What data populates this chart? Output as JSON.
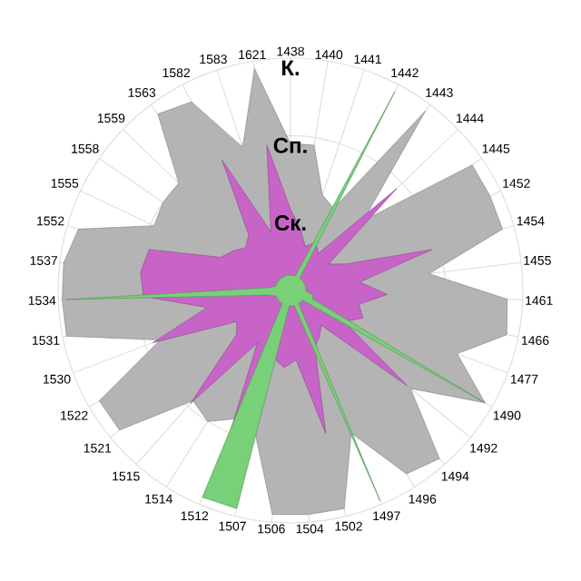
{
  "chart_data": {
    "type": "radar",
    "categories": [
      "1438",
      "1440",
      "1441",
      "1442",
      "1443",
      "1444",
      "1445",
      "1452",
      "1454",
      "1455",
      "1461",
      "1466",
      "1477",
      "1490",
      "1492",
      "1494",
      "1496",
      "1497",
      "1502",
      "1504",
      "1506",
      "1507",
      "1512",
      "1514",
      "1515",
      "1521",
      "1522",
      "1530",
      "1531",
      "1534",
      "1537",
      "1552",
      "1555",
      "1558",
      "1559",
      "1563",
      "1582",
      "1583",
      "1621"
    ],
    "ylim": [
      0,
      3
    ],
    "yticks": [
      {
        "value": 1,
        "label": "Ск."
      },
      {
        "value": 2,
        "label": "Сп."
      },
      {
        "value": 3,
        "label": "К."
      }
    ],
    "grid": true,
    "series": [
      {
        "color": "#b4b4b4",
        "values": [
          1.9,
          1.9,
          1.3,
          1.2,
          2.9,
          1.3,
          2.85,
          2.85,
          2.85,
          1.8,
          2.8,
          2.85,
          2.3,
          2.9,
          2.0,
          2.9,
          2.8,
          2.0,
          2.9,
          2.9,
          2.9,
          1.9,
          1.8,
          2.0,
          1.9,
          2.85,
          2.85,
          1.8,
          2.95,
          2.95,
          2.95,
          2.85,
          1.95,
          2.0,
          2.0,
          2.85,
          2.75,
          1.95,
          2.9
        ]
      },
      {
        "color": "#c864c8",
        "values": [
          1.05,
          0.8,
          0.6,
          0.7,
          0.6,
          1.9,
          0.6,
          0.8,
          1.9,
          0.9,
          1.25,
          0.9,
          1.0,
          0.8,
          1.95,
          0.6,
          0.7,
          0.8,
          1.9,
          0.9,
          1.0,
          0.9,
          2.0,
          0.8,
          1.95,
          0.9,
          0.8,
          1.9,
          1.1,
          1.9,
          1.95,
          1.9,
          1.0,
          0.9,
          0.8,
          0.9,
          1.9,
          0.8,
          1.9
        ]
      },
      {
        "color": "#78d078",
        "values": [
          0.2,
          0.2,
          0.2,
          2.9,
          0.2,
          0.2,
          0.2,
          0.2,
          0.2,
          0.2,
          0.2,
          0.3,
          0.3,
          2.9,
          0.2,
          0.2,
          0.2,
          2.95,
          0.2,
          0.2,
          0.2,
          2.9,
          2.9,
          0.2,
          0.2,
          0.2,
          0.2,
          0.2,
          0.3,
          2.9,
          0.3,
          0.2,
          0.2,
          0.2,
          0.2,
          0.2,
          0.2,
          0.2,
          0.2
        ]
      }
    ]
  }
}
